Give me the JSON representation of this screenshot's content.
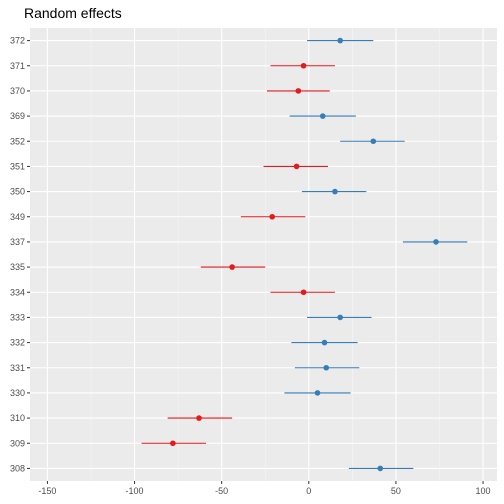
{
  "chart_data": {
    "type": "scatter",
    "title": "Random effects",
    "xlabel": "",
    "ylabel": "",
    "xlim": [
      -160,
      108
    ],
    "x_ticks": [
      -150,
      -100,
      -50,
      0,
      50,
      100
    ],
    "x_tick_labels": [
      "-150",
      "-100",
      "-50",
      "0",
      "50",
      "100"
    ],
    "grid": true,
    "legend": "none",
    "categories": [
      "372",
      "371",
      "370",
      "369",
      "352",
      "351",
      "350",
      "349",
      "337",
      "335",
      "334",
      "333",
      "332",
      "331",
      "330",
      "310",
      "309",
      "308"
    ],
    "estimate": [
      18,
      -3,
      -6,
      8,
      37,
      -7,
      15,
      -21,
      73,
      -44,
      -3,
      18,
      9,
      10,
      5,
      -63,
      -78,
      41
    ],
    "lower": [
      -1,
      -22,
      -24,
      -11,
      18,
      -26,
      -4,
      -39,
      54,
      -62,
      -22,
      -1,
      -10,
      -8,
      -14,
      -81,
      -96,
      23
    ],
    "upper": [
      37,
      15,
      12,
      27,
      55,
      11,
      33,
      -2,
      91,
      -25,
      15,
      36,
      28,
      29,
      24,
      -44,
      -59,
      60
    ],
    "colors": {
      "positive": "#377eb8",
      "negative": "#e41a1c",
      "panel": "#ebebeb",
      "grid_major": "#ffffff",
      "grid_minor": "#f5f5f5"
    }
  }
}
